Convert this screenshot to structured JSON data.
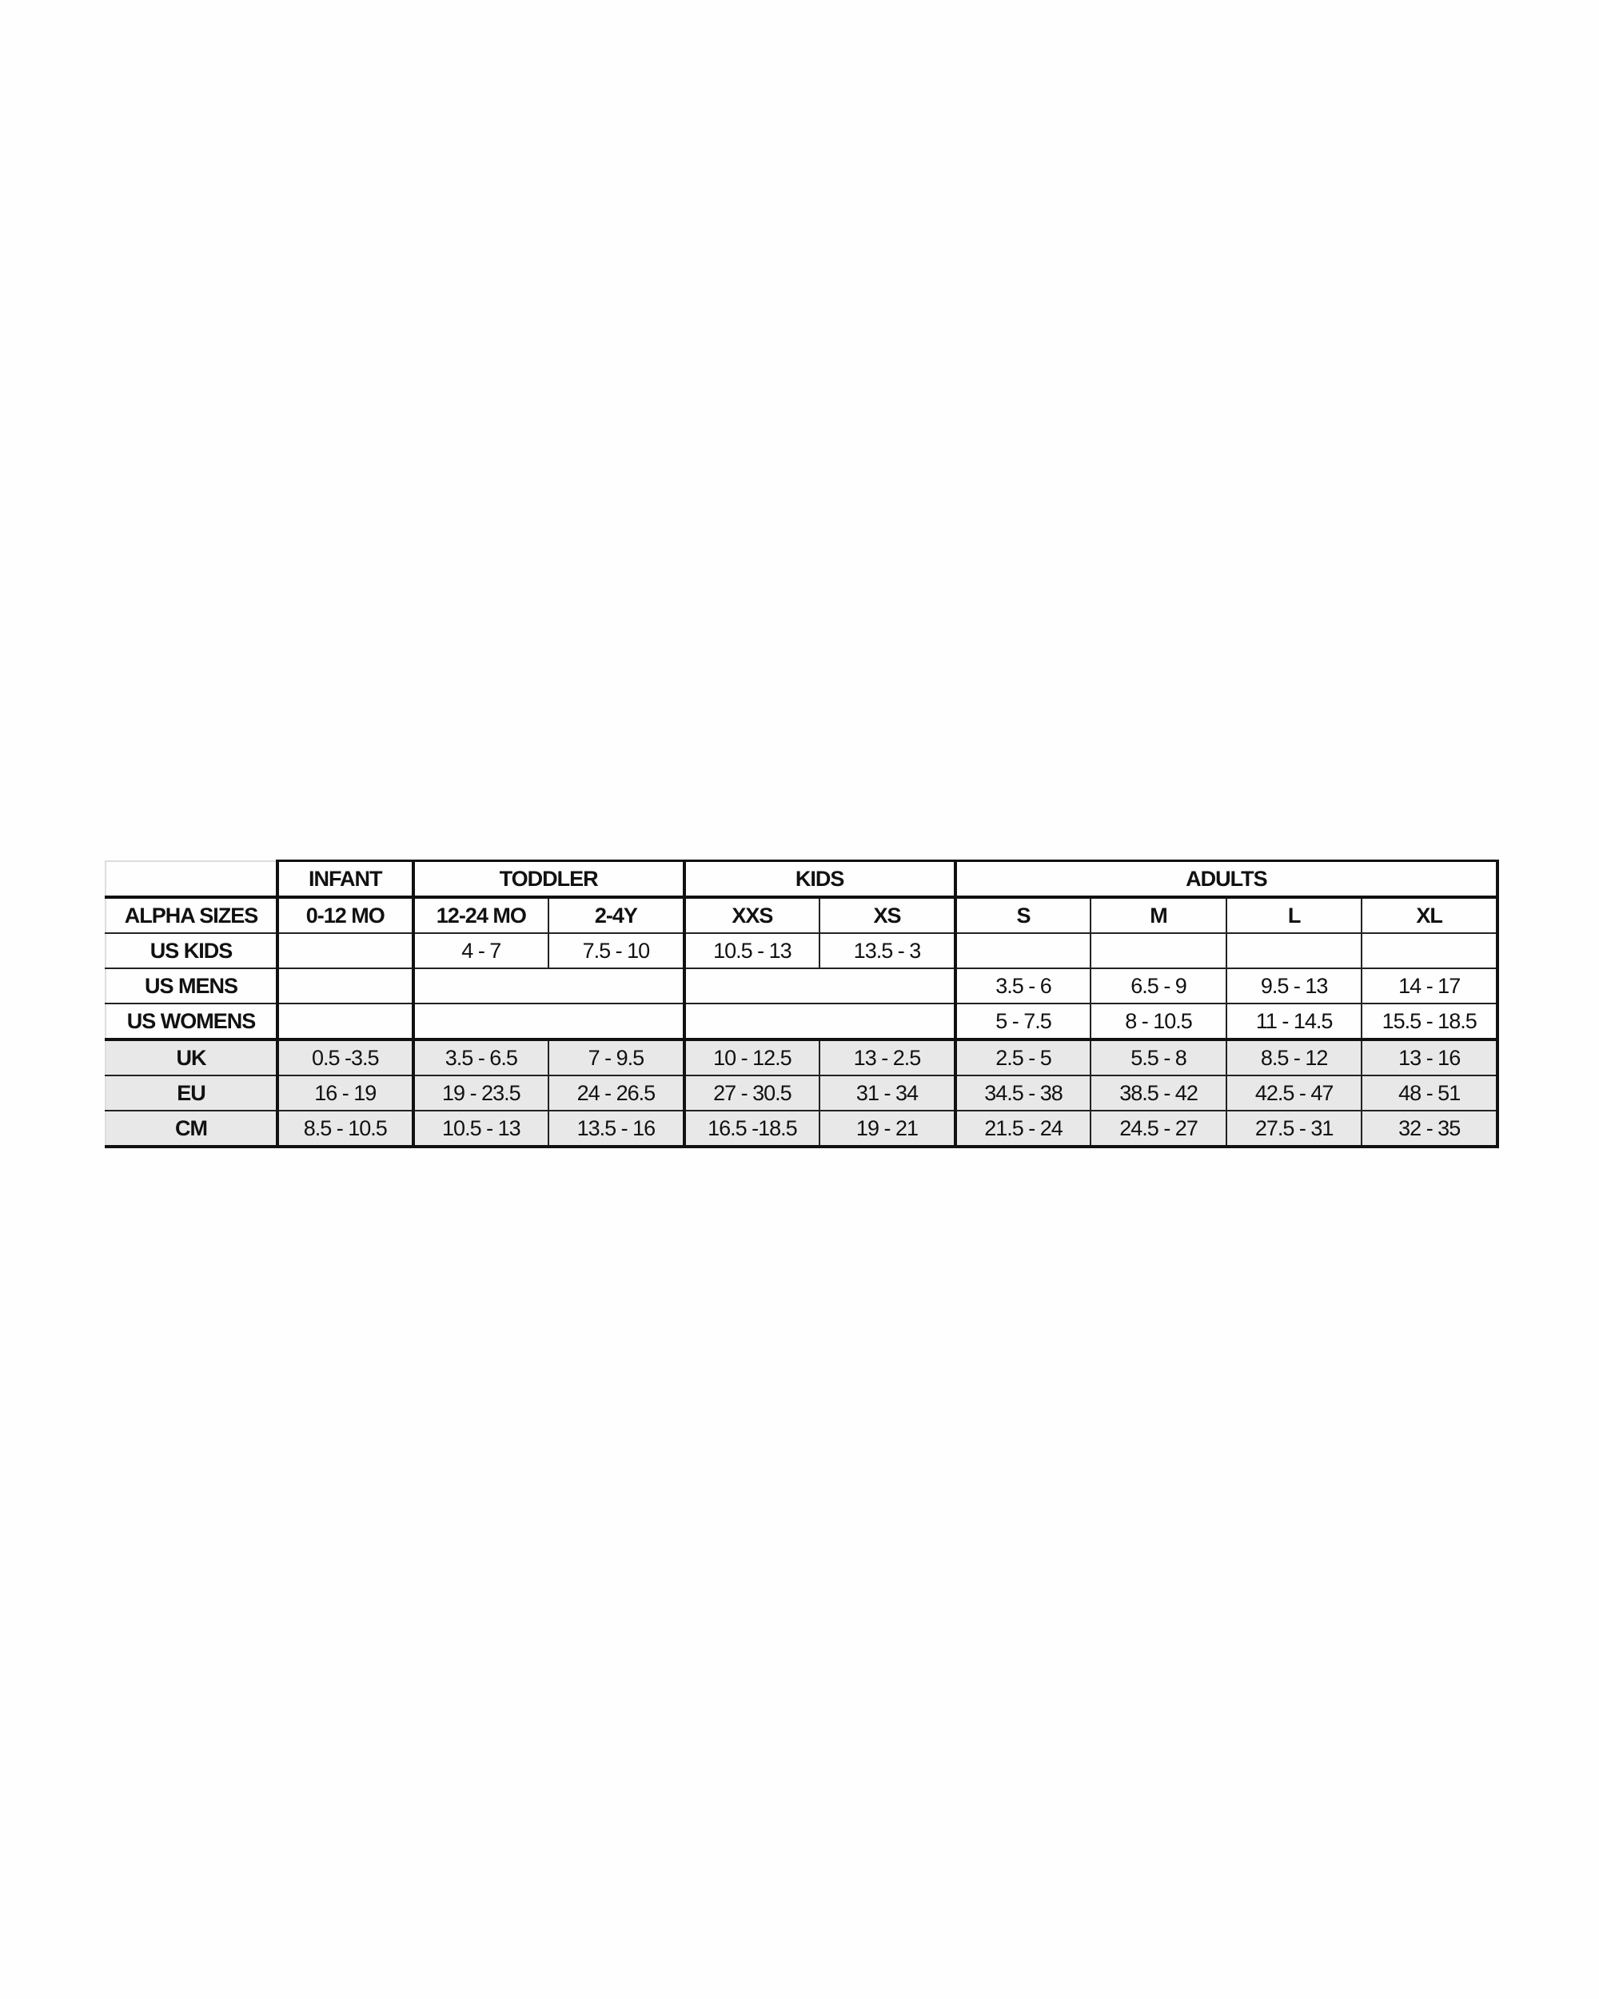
{
  "chart": {
    "groups": [
      {
        "label": "INFANT",
        "span": 1
      },
      {
        "label": "TODDLER",
        "span": 2
      },
      {
        "label": "KIDS",
        "span": 2
      },
      {
        "label": "ADULTS",
        "span": 4
      }
    ],
    "rows": [
      {
        "label": "ALPHA SIZES",
        "header": true,
        "shade": "white",
        "cells": [
          {
            "text": "0-12 MO",
            "span": 1
          },
          {
            "text": "12-24 MO",
            "span": 1
          },
          {
            "text": "2-4Y",
            "span": 1
          },
          {
            "text": "XXS",
            "span": 1
          },
          {
            "text": "XS",
            "span": 1
          },
          {
            "text": "S",
            "span": 1
          },
          {
            "text": "M",
            "span": 1
          },
          {
            "text": "L",
            "span": 1
          },
          {
            "text": "XL",
            "span": 1
          }
        ]
      },
      {
        "label": "US KIDS",
        "shade": "white",
        "cells": [
          {
            "text": "",
            "span": 1
          },
          {
            "text": "4 - 7",
            "span": 1
          },
          {
            "text": "7.5 - 10",
            "span": 1
          },
          {
            "text": "10.5 - 13",
            "span": 1
          },
          {
            "text": "13.5 - 3",
            "span": 1
          },
          {
            "text": "",
            "span": 1
          },
          {
            "text": "",
            "span": 1
          },
          {
            "text": "",
            "span": 1
          },
          {
            "text": "",
            "span": 1
          }
        ]
      },
      {
        "label": "US MENS",
        "shade": "white",
        "cells": [
          {
            "text": "",
            "span": 1
          },
          {
            "text": "",
            "span": 2
          },
          {
            "text": "",
            "span": 2
          },
          {
            "text": "3.5 - 6",
            "span": 1
          },
          {
            "text": "6.5 - 9",
            "span": 1
          },
          {
            "text": "9.5 - 13",
            "span": 1
          },
          {
            "text": "14 - 17",
            "span": 1
          }
        ]
      },
      {
        "label": "US WOMENS",
        "shade": "white",
        "cells": [
          {
            "text": "",
            "span": 1
          },
          {
            "text": "",
            "span": 2
          },
          {
            "text": "",
            "span": 2
          },
          {
            "text": "5 - 7.5",
            "span": 1
          },
          {
            "text": "8 - 10.5",
            "span": 1
          },
          {
            "text": "11 - 14.5",
            "span": 1
          },
          {
            "text": "15.5 - 18.5",
            "span": 1
          }
        ]
      },
      {
        "label": "UK",
        "shade": "gray",
        "cells": [
          {
            "text": "0.5 -3.5",
            "span": 1
          },
          {
            "text": "3.5 - 6.5",
            "span": 1
          },
          {
            "text": "7 - 9.5",
            "span": 1
          },
          {
            "text": "10 - 12.5",
            "span": 1
          },
          {
            "text": "13 - 2.5",
            "span": 1
          },
          {
            "text": "2.5 - 5",
            "span": 1
          },
          {
            "text": "5.5 - 8",
            "span": 1
          },
          {
            "text": "8.5 - 12",
            "span": 1
          },
          {
            "text": "13 - 16",
            "span": 1
          }
        ]
      },
      {
        "label": "EU",
        "shade": "gray",
        "cells": [
          {
            "text": "16 - 19",
            "span": 1
          },
          {
            "text": "19 - 23.5",
            "span": 1
          },
          {
            "text": "24 - 26.5",
            "span": 1
          },
          {
            "text": "27 - 30.5",
            "span": 1
          },
          {
            "text": "31 - 34",
            "span": 1
          },
          {
            "text": "34.5 - 38",
            "span": 1
          },
          {
            "text": "38.5 - 42",
            "span": 1
          },
          {
            "text": "42.5 - 47",
            "span": 1
          },
          {
            "text": "48 - 51",
            "span": 1
          }
        ]
      },
      {
        "label": "CM",
        "shade": "gray",
        "cells": [
          {
            "text": "8.5 - 10.5",
            "span": 1
          },
          {
            "text": "10.5 - 13",
            "span": 1
          },
          {
            "text": "13.5 - 16",
            "span": 1
          },
          {
            "text": "16.5 -18.5",
            "span": 1
          },
          {
            "text": "19 - 21",
            "span": 1
          },
          {
            "text": "21.5 - 24",
            "span": 1
          },
          {
            "text": "24.5 - 27",
            "span": 1
          },
          {
            "text": "27.5 - 31",
            "span": 1
          },
          {
            "text": "32 - 35",
            "span": 1
          }
        ]
      }
    ],
    "colors": {
      "border": "#111111",
      "shade": "#e8e8e8"
    }
  }
}
